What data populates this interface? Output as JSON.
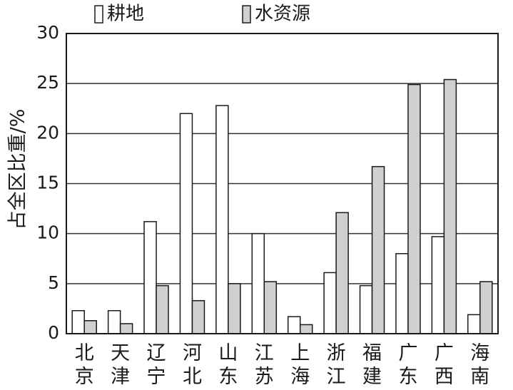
{
  "chart_data": {
    "type": "bar",
    "ylabel": "占全区比重/%",
    "xlabel": "",
    "ylim": [
      0,
      30
    ],
    "yticks": [
      0,
      5,
      10,
      15,
      20,
      25,
      30
    ],
    "grid": true,
    "legend_position": "top",
    "categories": [
      "北京",
      "天津",
      "辽宁",
      "河北",
      "山东",
      "江苏",
      "上海",
      "浙江",
      "福建",
      "广东",
      "广西",
      "海南"
    ],
    "series": [
      {
        "name": "耕地",
        "color": "#ffffff",
        "values": [
          2.3,
          2.3,
          11.2,
          22.0,
          22.8,
          10.0,
          1.7,
          6.1,
          4.8,
          8.0,
          9.7,
          1.9
        ]
      },
      {
        "name": "水资源",
        "color": "#d0d0d0",
        "values": [
          1.3,
          1.0,
          4.8,
          3.3,
          5.0,
          5.2,
          0.9,
          12.1,
          16.7,
          24.9,
          25.4,
          5.2
        ]
      }
    ]
  }
}
